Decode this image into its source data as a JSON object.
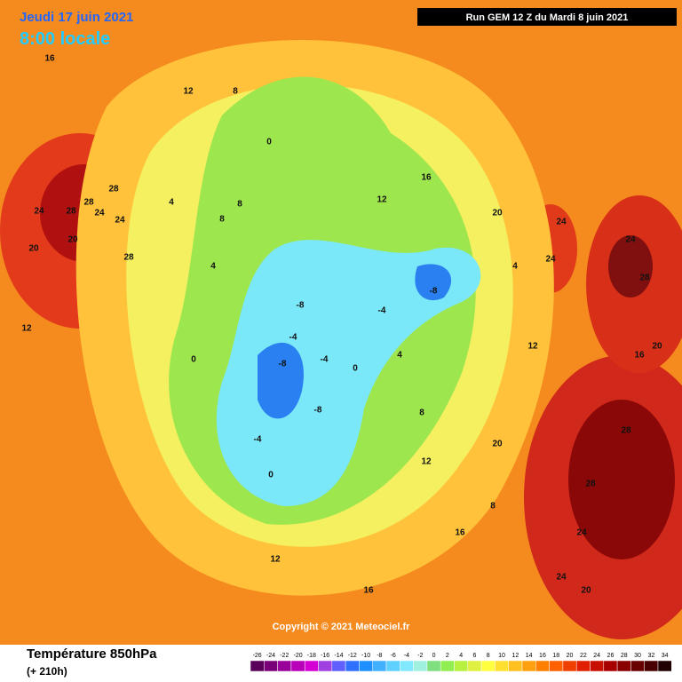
{
  "header": {
    "date": "Jeudi 17 juin 2021",
    "time": "8:00 locale",
    "run": "Run GEM 12 Z du Mardi 8 juin 2021"
  },
  "copyright": "Copyright © 2021 Meteociel.fr",
  "footer": {
    "title": "Température 850hPa",
    "lead": "(+ 210h)"
  },
  "colorbar": {
    "ticks": [
      -26,
      -24,
      -22,
      -20,
      -18,
      -16,
      -14,
      -12,
      -10,
      -8,
      -6,
      -4,
      -2,
      0,
      2,
      4,
      6,
      8,
      10,
      12,
      14,
      16,
      18,
      20,
      22,
      24,
      26,
      28,
      30,
      32,
      34
    ],
    "colors": [
      "#5a005a",
      "#7a007a",
      "#9a009a",
      "#b800b8",
      "#d400d4",
      "#a040e0",
      "#6060ff",
      "#3070ff",
      "#1e90ff",
      "#40b0ff",
      "#60d0ff",
      "#80e8ff",
      "#a0f0e0",
      "#80e080",
      "#90ee50",
      "#b8f040",
      "#e0f040",
      "#ffff40",
      "#ffe030",
      "#ffc020",
      "#ffa010",
      "#ff8000",
      "#ff6000",
      "#f04000",
      "#e02000",
      "#c81000",
      "#a80000",
      "#880000",
      "#680000",
      "#480000",
      "#200000"
    ]
  },
  "map_labels": [
    28,
    24,
    28,
    24,
    28,
    20,
    28,
    20,
    24,
    16,
    12,
    12,
    8,
    8,
    4,
    0,
    0,
    4,
    8,
    12,
    16,
    20,
    24,
    24,
    28,
    -8,
    -8,
    -4,
    -8,
    -4,
    -8,
    -4,
    0,
    -4,
    4,
    8,
    12,
    16,
    20,
    24,
    28,
    28,
    24,
    20,
    16,
    12,
    8,
    4,
    0,
    12,
    16,
    20,
    24
  ]
}
